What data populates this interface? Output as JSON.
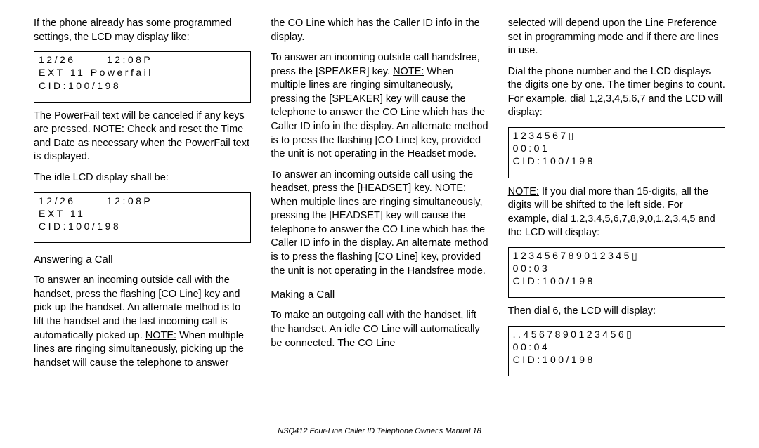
{
  "col1": {
    "p1": "If the phone already has some programmed settings, the LCD may display like:",
    "lcd1_l1": "12/26      12:08P",
    "lcd1_l2": "EXT 11 Powerfail",
    "lcd1_l3": "CID:100/198",
    "p2a": "The  PowerFail  text will be canceled if any keys are pressed. ",
    "p2note": "NOTE:",
    "p2b": " Check and reset the Time and Date as necessary when the  PowerFail  text is displayed.",
    "p3": "The idle LCD display shall be:",
    "lcd2_l1": "12/26      12:08P",
    "lcd2_l2": "EXT 11",
    "lcd2_l3": "CID:100/198",
    "h1": "Answering a Call",
    "p4a": "To answer an incoming outside call with the handset, press the flashing [CO Line] key and pick up the handset. An alternate method is to lift the handset and the last incoming call is automatically picked up. ",
    "p4note": "NOTE:",
    "p4b": " When multiple lines are ringing simultaneously, picking up the handset will cause the telephone to answer"
  },
  "col2": {
    "p1": "the CO Line which has the Caller ID info in the display.",
    "p2a": "To answer an incoming outside call handsfree, press the [SPEAKER] key. ",
    "p2note": "NOTE:",
    "p2b": " When multiple lines are ringing simultaneously, pressing the [SPEAKER] key will cause the telephone to answer the CO Line which has the Caller ID info in the display. An alternate method is to press the flashing [CO Line] key, provided the unit is not operating in the Headset mode.",
    "p3a": "To answer an incoming outside call using the headset, press the [HEADSET] key. ",
    "p3note": "NOTE:",
    "p3b": " When multiple lines are ringing simultaneously, pressing the [HEADSET] key will cause the telephone to answer the CO Line which has the Caller ID info in the display. An alternate method is to press the flashing [CO Line] key, provided the unit is not operating in the Handsfree mode.",
    "h1": "Making a Call",
    "p4": "To make an outgoing call with the handset, lift the handset. An idle CO Line will automatically be connected. The CO Line"
  },
  "col3": {
    "p1": "selected will depend upon the Line Preference set in programming mode and if there are lines in use.",
    "p2": "Dial the phone number and the LCD displays the digits one by one. The timer begins to count. For example, dial 1,2,3,4,5,6,7 and the LCD will display:",
    "lcd1_l1": "1234567▯",
    "lcd1_l2": "00:01",
    "lcd1_l3": "CID:100/198",
    "p3a_note": "NOTE:",
    "p3a": " If you dial more than 15-digits, all the digits will be shifted to the left side. For example, dial 1,2,3,4,5,6,7,8,9,0,1,2,3,4,5 and the LCD will display:",
    "lcd2_l1": "123456789012345▯",
    "lcd2_l2": "00:03",
    "lcd2_l3": "CID:100/198",
    "p4": "Then dial 6, the LCD will display:",
    "lcd3_l1": "..4567890123456▯",
    "lcd3_l2": "00:04",
    "lcd3_l3": "CID:100/198"
  },
  "footer": "NSQ412 Four-Line Caller ID Telephone Owner's Manual    18"
}
